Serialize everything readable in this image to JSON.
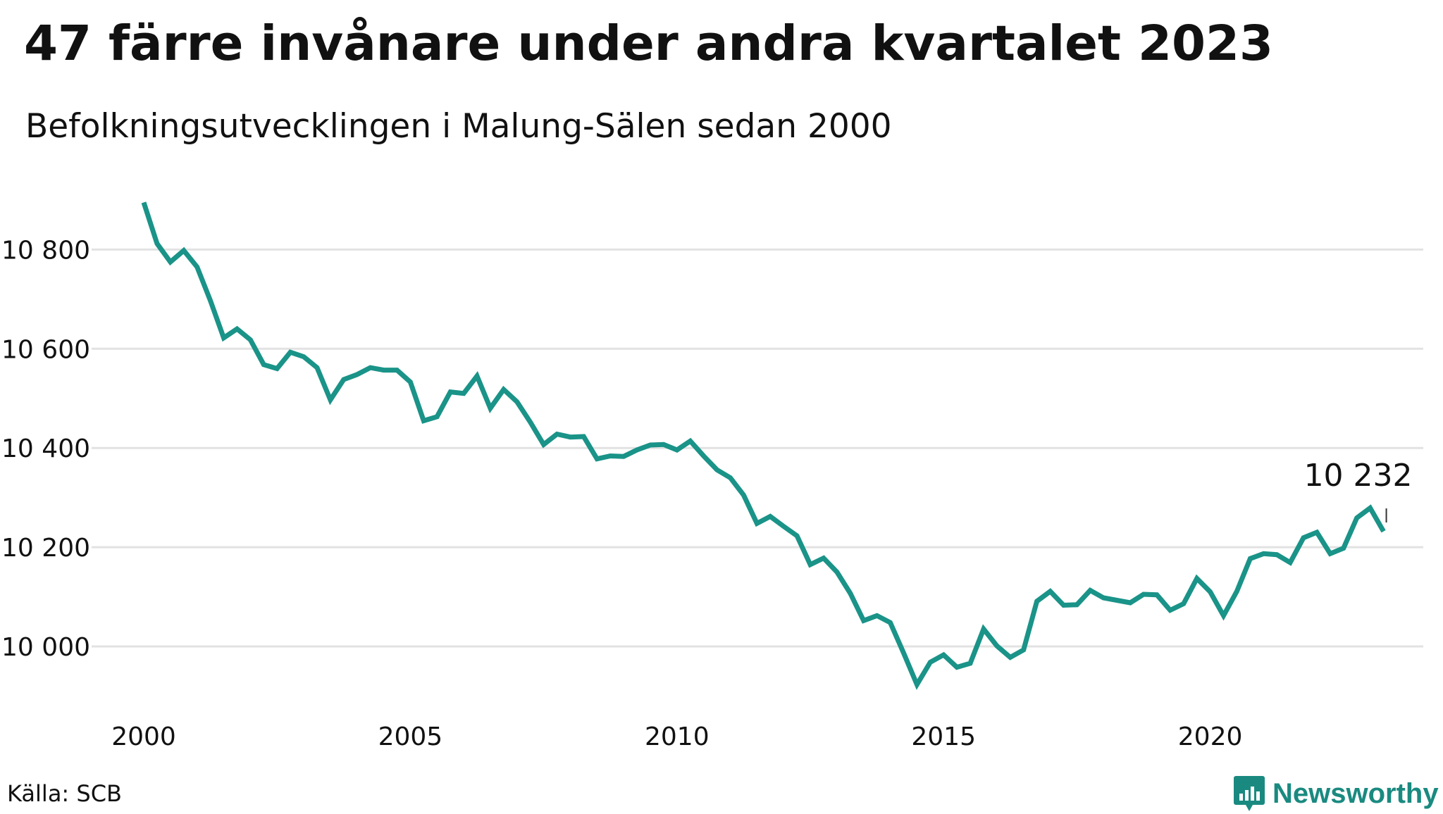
{
  "header": {
    "title": "47 färre invånare under andra kvartalet 2023",
    "subtitle": "Befolkningsutvecklingen i Malung-Sälen sedan 2000"
  },
  "footer": {
    "source": "Källa: SCB",
    "brand": "Newsworthy"
  },
  "colors": {
    "line": "#1a9388",
    "grid": "#e2e2e2",
    "text": "#111111",
    "brand": "#1a8a80"
  },
  "icons": {
    "brand_logo": "bar-chart-bubble-icon"
  },
  "chart_data": {
    "type": "line",
    "title": "47 färre invånare under andra kvartalet 2023",
    "subtitle": "Befolkningsutvecklingen i Malung-Sälen sedan 2000",
    "xlabel": "",
    "ylabel": "",
    "grid": true,
    "legend": "none",
    "x_ticks": [
      "2000",
      "2005",
      "2010",
      "2015",
      "2020"
    ],
    "y_ticks": [
      10000,
      10200,
      10400,
      10600,
      10800
    ],
    "y_tick_labels": [
      "10 000",
      "10 200",
      "10 400",
      "10 600",
      "10 800"
    ],
    "xlim": [
      "2000 Q1",
      "2024 Q1"
    ],
    "ylim": [
      9880,
      10940
    ],
    "last_value_label": "10 232",
    "series": [
      {
        "x": [
          "2000 Q1",
          "2000 Q2",
          "2000 Q3",
          "2000 Q4",
          "2001 Q1",
          "2001 Q2",
          "2001 Q3",
          "2001 Q4",
          "2002 Q1",
          "2002 Q2",
          "2002 Q3",
          "2002 Q4",
          "2003 Q1",
          "2003 Q2",
          "2003 Q3",
          "2003 Q4",
          "2004 Q1",
          "2004 Q2",
          "2004 Q3",
          "2004 Q4",
          "2005 Q1",
          "2005 Q2",
          "2005 Q3",
          "2005 Q4",
          "2006 Q1",
          "2006 Q2",
          "2006 Q3",
          "2006 Q4",
          "2007 Q1",
          "2007 Q2",
          "2007 Q3",
          "2007 Q4",
          "2008 Q1",
          "2008 Q2",
          "2008 Q3",
          "2008 Q4",
          "2009 Q1",
          "2009 Q2",
          "2009 Q3",
          "2009 Q4",
          "2010 Q1",
          "2010 Q2",
          "2010 Q3",
          "2010 Q4",
          "2011 Q1",
          "2011 Q2",
          "2011 Q3",
          "2011 Q4",
          "2012 Q1",
          "2012 Q2",
          "2012 Q3",
          "2012 Q4",
          "2013 Q1",
          "2013 Q2",
          "2013 Q3",
          "2013 Q4",
          "2014 Q1",
          "2014 Q2",
          "2014 Q3",
          "2014 Q4",
          "2015 Q1",
          "2015 Q2",
          "2015 Q3",
          "2015 Q4",
          "2016 Q1",
          "2016 Q2",
          "2016 Q3",
          "2016 Q4",
          "2017 Q1",
          "2017 Q2",
          "2017 Q3",
          "2017 Q4",
          "2018 Q1",
          "2018 Q2",
          "2018 Q3",
          "2018 Q4",
          "2019 Q1",
          "2019 Q2",
          "2019 Q3",
          "2019 Q4",
          "2020 Q1",
          "2020 Q2",
          "2020 Q3",
          "2020 Q4",
          "2021 Q1",
          "2021 Q2",
          "2021 Q3",
          "2021 Q4",
          "2022 Q1",
          "2022 Q2",
          "2022 Q3",
          "2022 Q4",
          "2023 Q1",
          "2023 Q2"
        ],
        "values": [
          10895,
          10812,
          10775,
          10798,
          10765,
          10697,
          10622,
          10640,
          10618,
          10568,
          10560,
          10593,
          10584,
          10562,
          10497,
          10538,
          10548,
          10562,
          10557,
          10557,
          10533,
          10455,
          10463,
          10513,
          10510,
          10545,
          10480,
          10518,
          10493,
          10452,
          10407,
          10428,
          10422,
          10423,
          10378,
          10384,
          10383,
          10396,
          10406,
          10407,
          10396,
          10414,
          10384,
          10356,
          10340,
          10305,
          10248,
          10262,
          10242,
          10223,
          10165,
          10178,
          10150,
          10107,
          10052,
          10062,
          10048,
          9987,
          9923,
          9968,
          9983,
          9958,
          9966,
          10035,
          10001,
          9978,
          9993,
          10091,
          10111,
          10083,
          10084,
          10113,
          10098,
          10093,
          10088,
          10105,
          10104,
          10073,
          10086,
          10137,
          10110,
          10062,
          10111,
          10177,
          10187,
          10185,
          10169,
          10219,
          10230,
          10187,
          10198,
          10259,
          10279,
          10232
        ]
      }
    ]
  }
}
